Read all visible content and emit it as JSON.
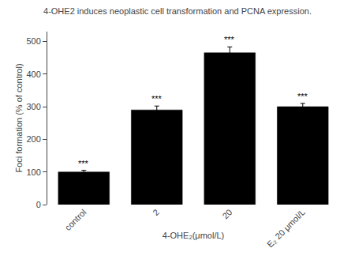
{
  "chart_data": {
    "type": "bar",
    "title": "4-OHE2 induces neoplastic cell transformation and PCNA expression.",
    "categories": [
      "control",
      "2",
      "20",
      "E₂ 20 μmol/L"
    ],
    "values": [
      100,
      290,
      465,
      300
    ],
    "errors": [
      5,
      12,
      18,
      10
    ],
    "color": "#000000",
    "xlabel": "4-OHE₂(μmol/L)",
    "ylabel": "Foci formation (% of control)",
    "ylim": [
      0,
      530
    ],
    "yticks": [
      0,
      100,
      200,
      300,
      400,
      500
    ],
    "grid": false,
    "annotations": [
      {
        "category": "control",
        "text": "***"
      },
      {
        "category": "2",
        "text": "***"
      },
      {
        "category": "20",
        "text": "***"
      },
      {
        "category": "E₂ 20 μmol/L",
        "text": "***"
      }
    ]
  }
}
